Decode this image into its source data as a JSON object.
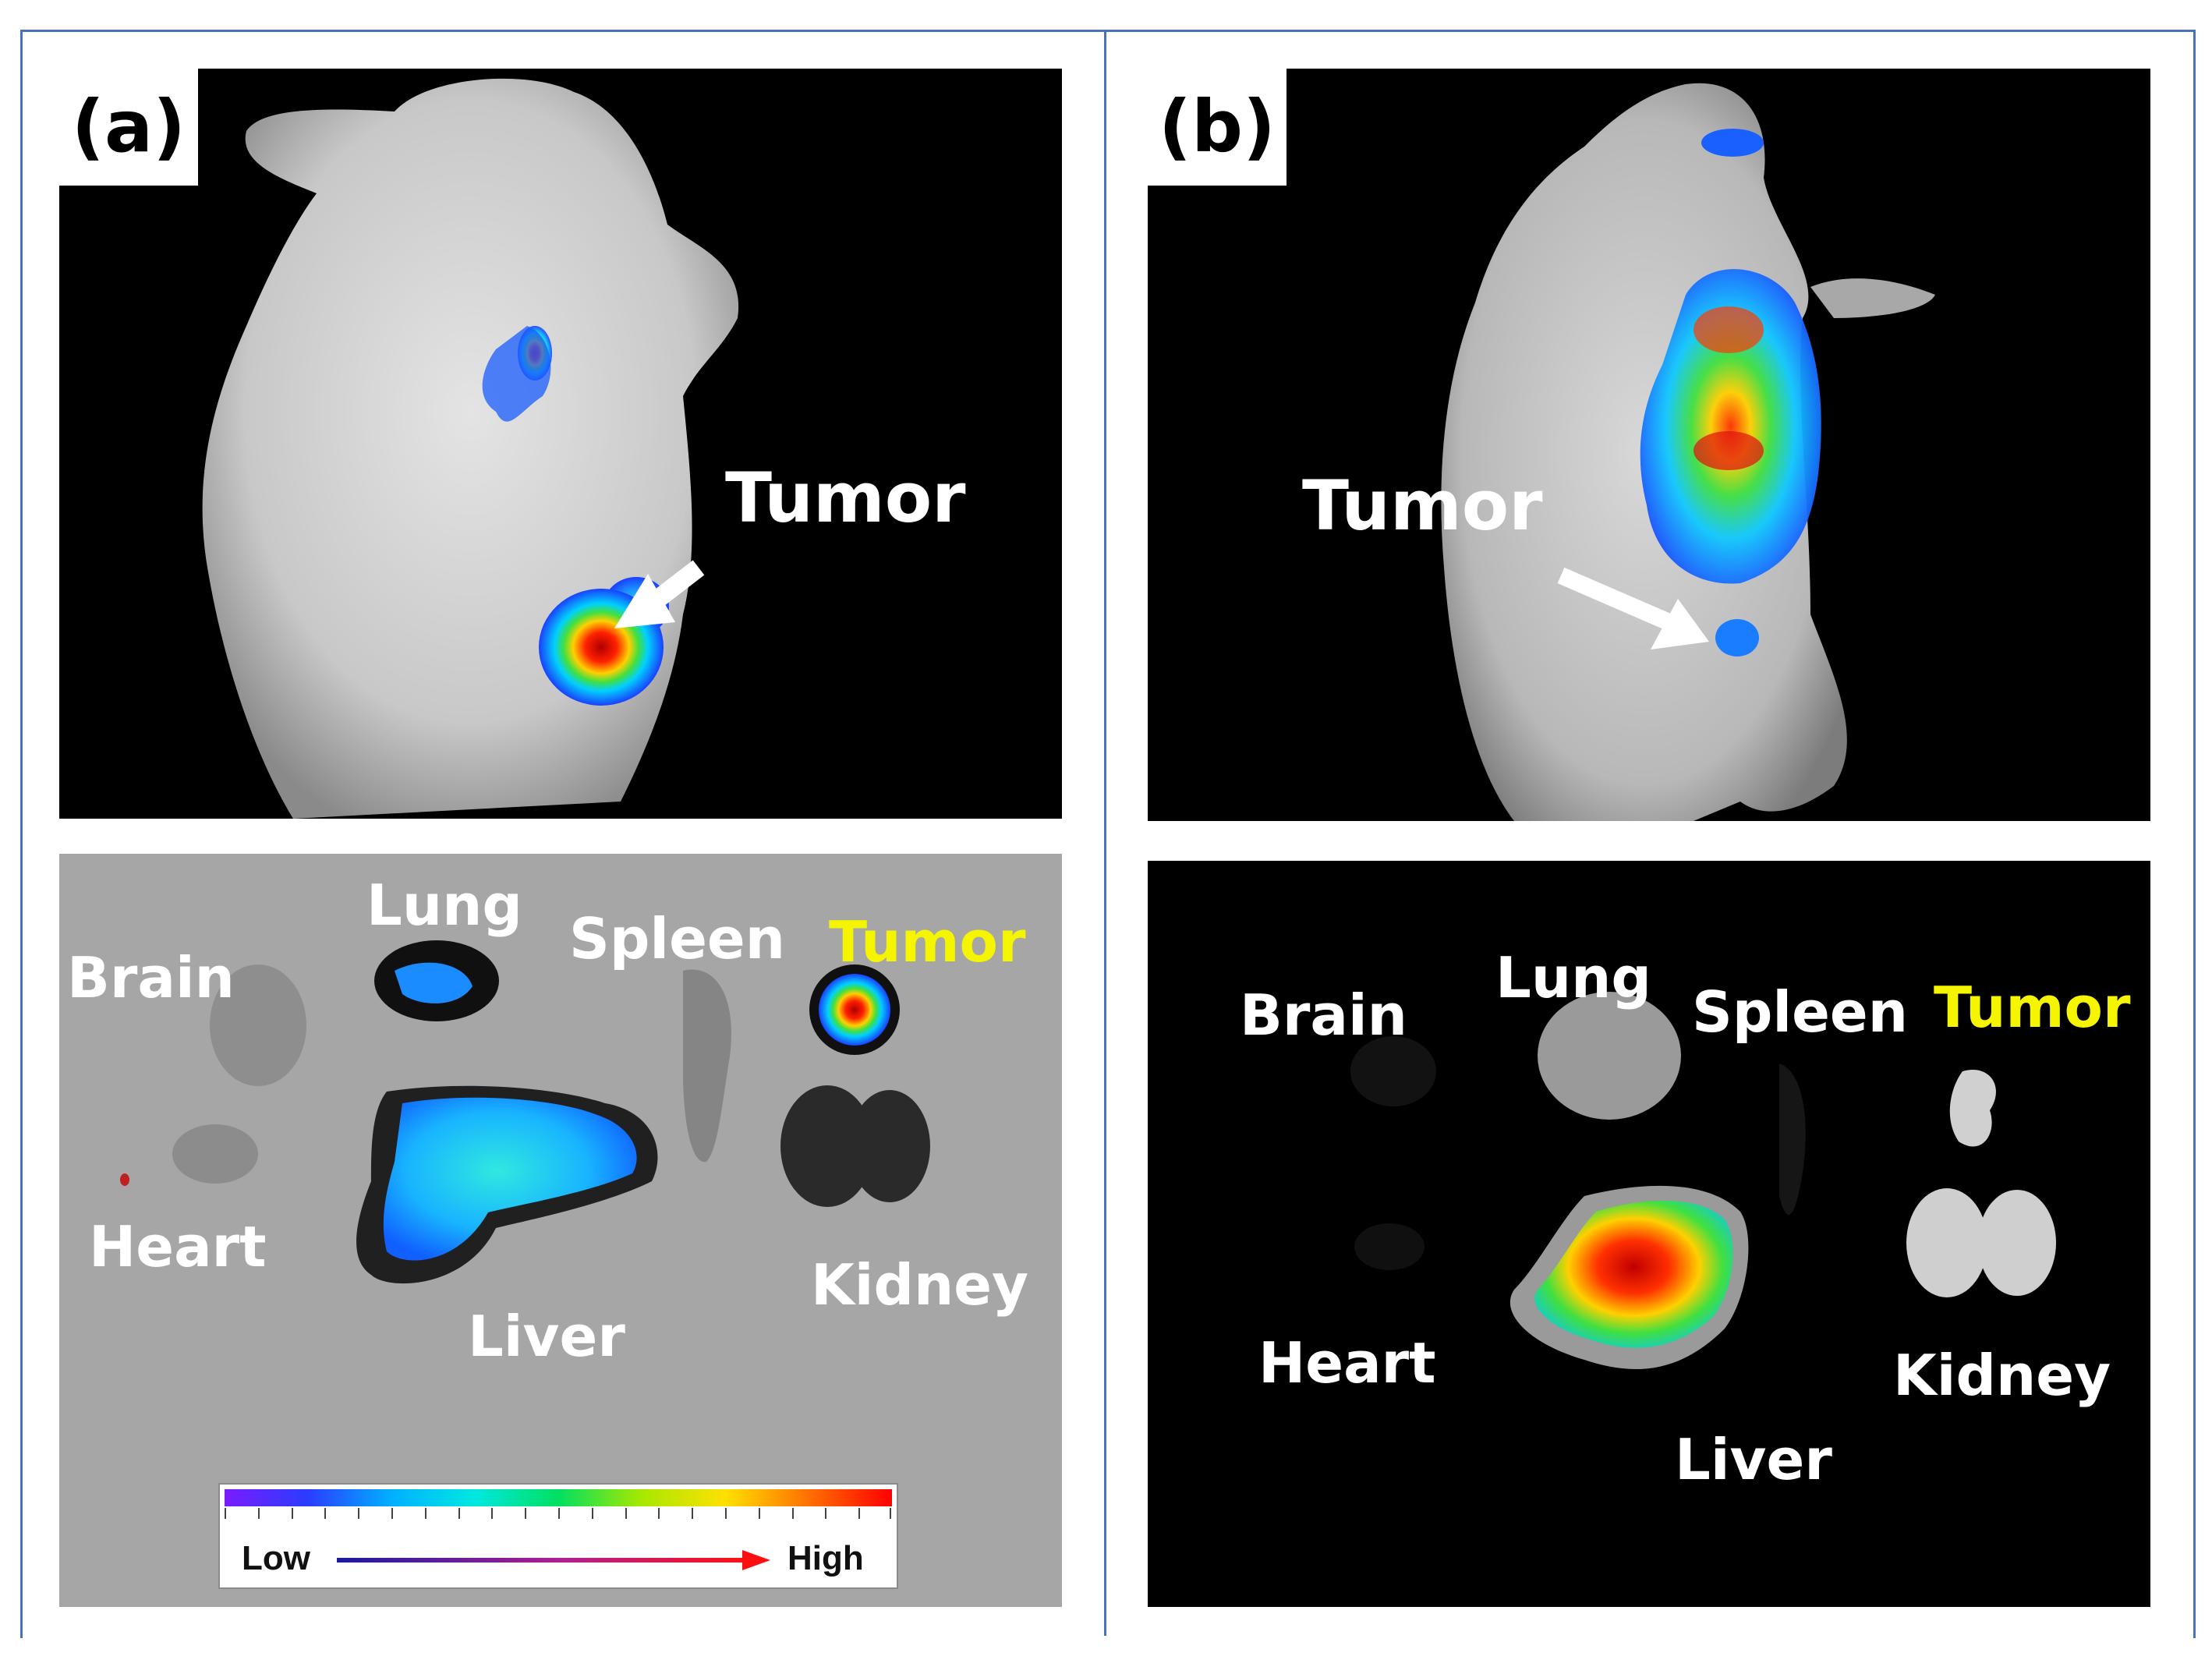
{
  "colors": {
    "frame": "#4a72b8",
    "label_white": "#ffffff",
    "label_tumor_organ": "#f5f500"
  },
  "panel_a": {
    "tag": "(a)",
    "whole_body": {
      "callout": "Tumor",
      "arrow": "arrow-icon"
    },
    "organs": {
      "brain": "Brain",
      "lung": "Lung",
      "spleen": "Spleen",
      "tumor": "Tumor",
      "heart": "Heart",
      "liver": "Liver",
      "kidney": "Kidney"
    },
    "colorbar": {
      "low": "Low",
      "high": "High",
      "arrow": "arrow-icon"
    }
  },
  "panel_b": {
    "tag": "(b)",
    "whole_body": {
      "callout": "Tumor",
      "arrow": "arrow-icon"
    },
    "organs": {
      "brain": "Brain",
      "lung": "Lung",
      "spleen": "Spleen",
      "tumor": "Tumor",
      "heart": "Heart",
      "liver": "Liver",
      "kidney": "Kidney"
    }
  }
}
